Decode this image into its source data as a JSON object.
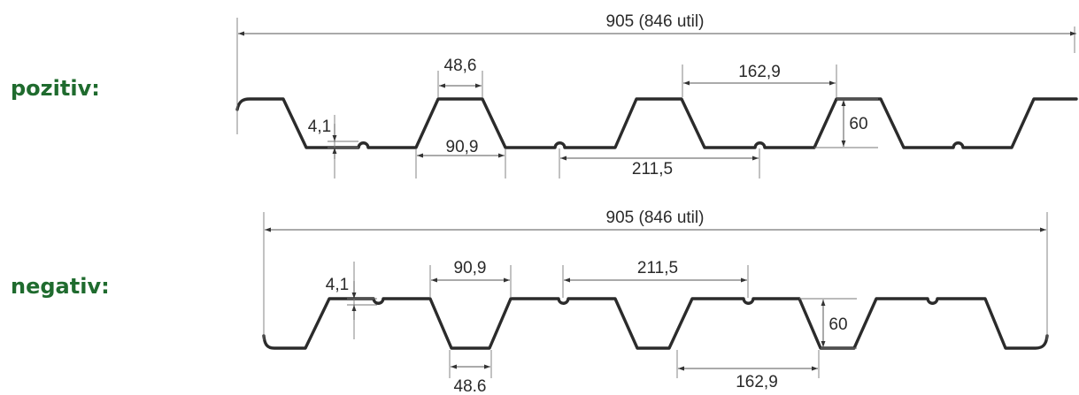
{
  "profiles": {
    "positive": {
      "label": "pozitiv:",
      "width_label": "905 (846 util)",
      "top_flange_label": "48,6",
      "rib_pitch_label": "162,9",
      "groove_label": "4,1",
      "bottom_width_label": "90,9",
      "groove_spacing_label": "211,5",
      "height_label": "60"
    },
    "negative": {
      "label": "negativ:",
      "width_label": "905 (846 util)",
      "top_width_label": "90,9",
      "groove_spacing_label": "211,5",
      "groove_label": "4,1",
      "height_label": "60",
      "bottom_flange_label": "48.6",
      "rib_pitch_label": "162,9"
    }
  },
  "colors": {
    "label_green": "#1f6b2e",
    "line": "#2b2b2b"
  }
}
